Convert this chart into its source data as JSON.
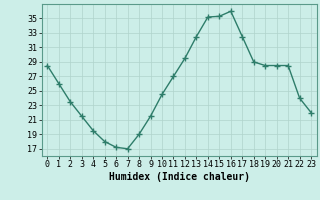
{
  "x": [
    0,
    1,
    2,
    3,
    4,
    5,
    6,
    7,
    8,
    9,
    10,
    11,
    12,
    13,
    14,
    15,
    16,
    17,
    18,
    19,
    20,
    21,
    22,
    23
  ],
  "y": [
    28.5,
    26.0,
    23.5,
    21.5,
    19.5,
    18.0,
    17.2,
    17.0,
    19.0,
    21.5,
    24.5,
    27.0,
    29.5,
    32.5,
    35.2,
    35.3,
    36.0,
    32.5,
    29.0,
    28.5,
    28.5,
    28.5,
    24.0,
    22.0
  ],
  "line_color": "#2e7d6a",
  "marker_color": "#2e7d6a",
  "bg_color": "#cceee8",
  "grid_color": "#b0d4cc",
  "xlabel": "Humidex (Indice chaleur)",
  "ylim": [
    16,
    37
  ],
  "xlim": [
    -0.5,
    23.5
  ],
  "yticks": [
    17,
    19,
    21,
    23,
    25,
    27,
    29,
    31,
    33,
    35
  ],
  "xticks": [
    0,
    1,
    2,
    3,
    4,
    5,
    6,
    7,
    8,
    9,
    10,
    11,
    12,
    13,
    14,
    15,
    16,
    17,
    18,
    19,
    20,
    21,
    22,
    23
  ],
  "label_fontsize": 7,
  "tick_fontsize": 6,
  "line_width": 1.0,
  "marker_size": 4
}
